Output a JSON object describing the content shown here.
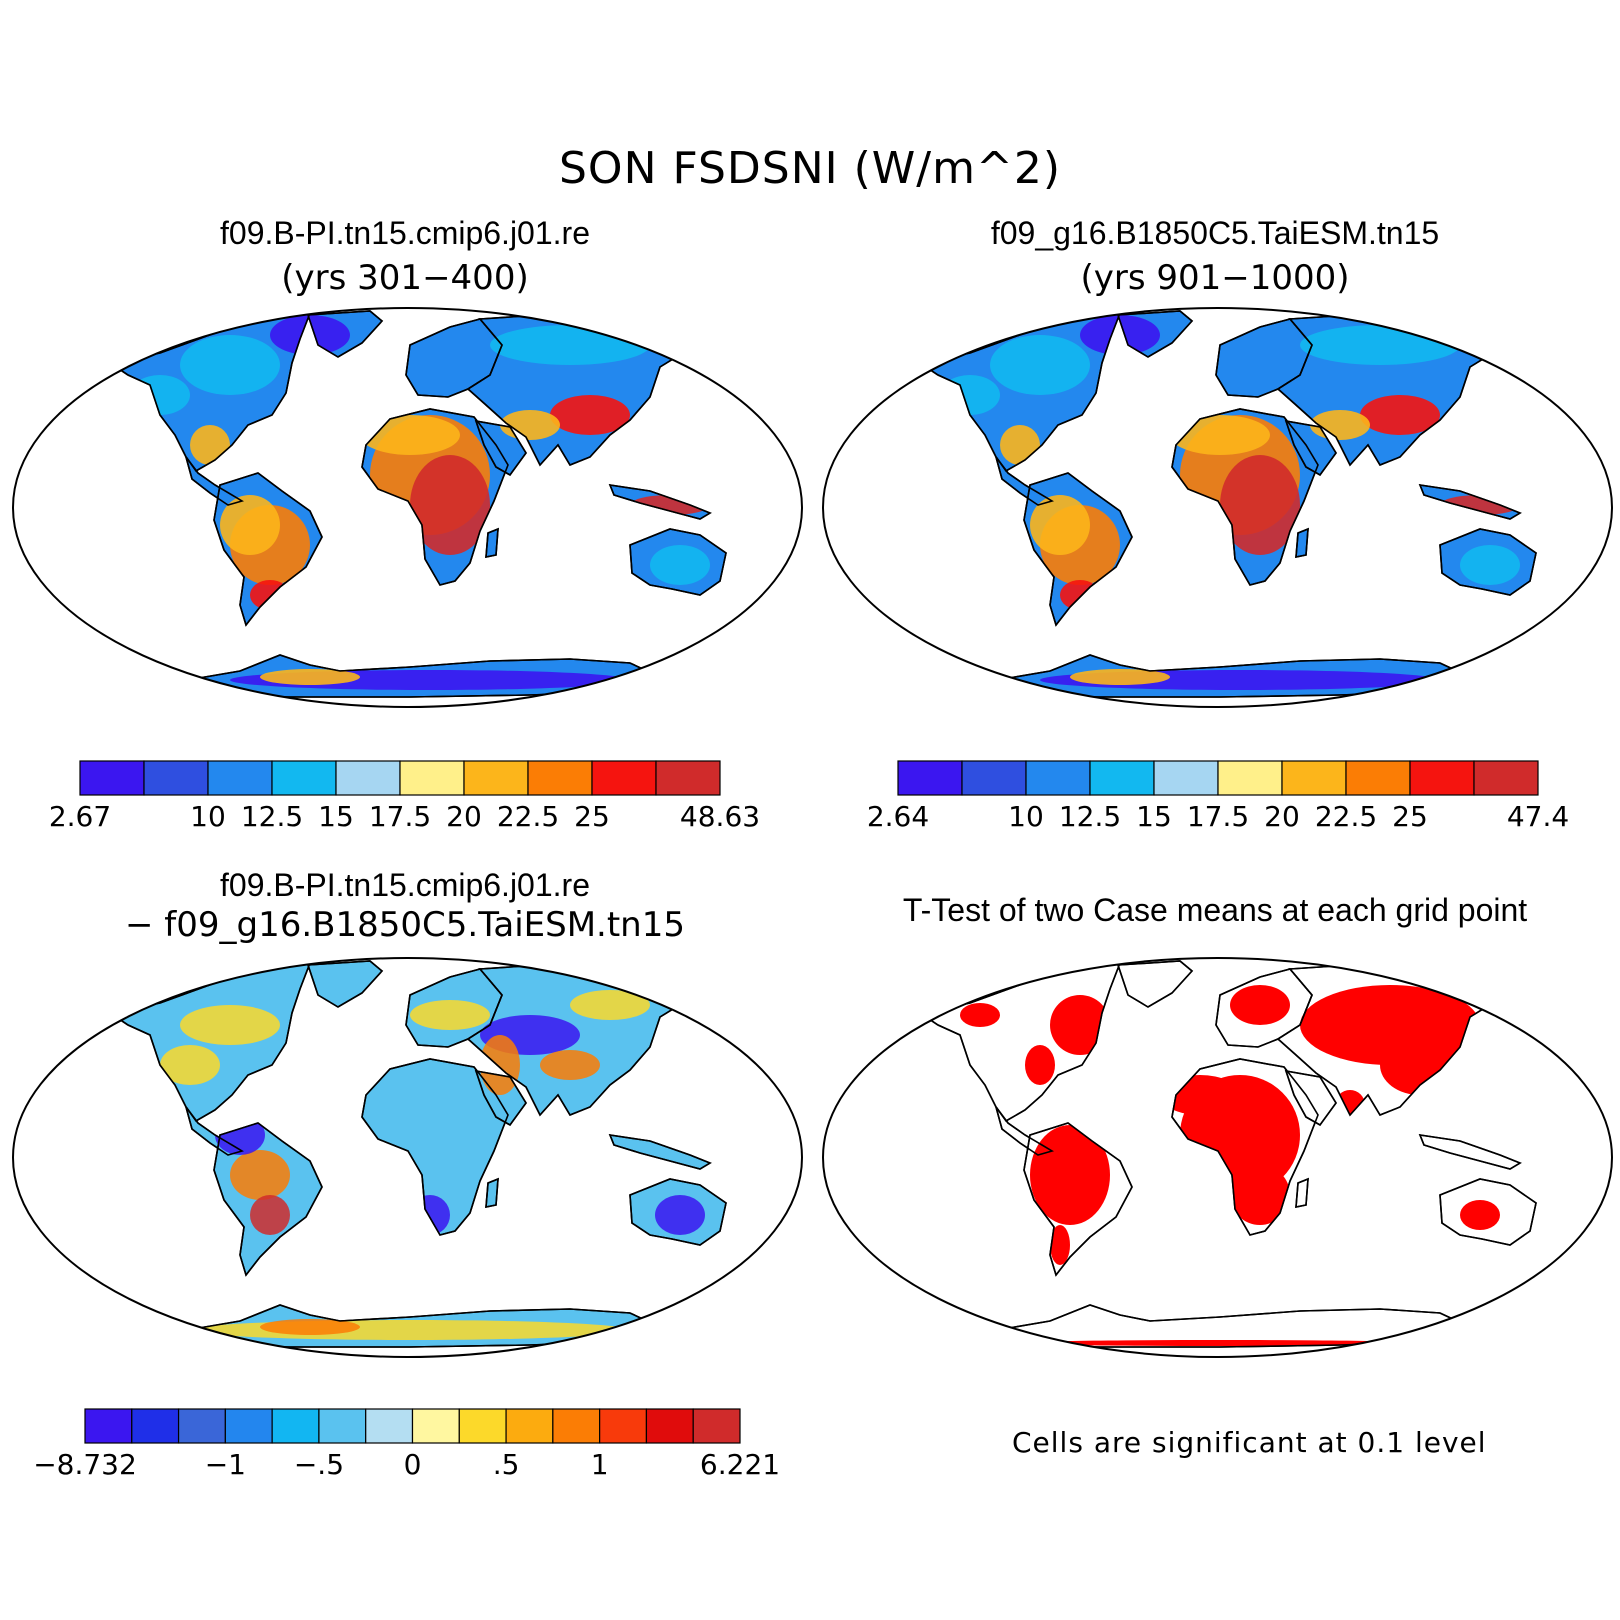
{
  "figure": {
    "title": "SON FSDSNI (W/m^2)"
  },
  "panels": [
    {
      "id": "case1",
      "title": "f09.B-PI.tn15.cmip6.j01.re",
      "subtitle": "(yrs 301−400)",
      "colorbar": {
        "colors": [
          "#3b16f0",
          "#2f4fe0",
          "#2388ee",
          "#12b8f0",
          "#a6d6f2",
          "#fff08a",
          "#fcb51b",
          "#fb7d05",
          "#f5140f",
          "#d02b2b"
        ],
        "labels": [
          "2.67",
          "10",
          "12.5",
          "15",
          "17.5",
          "20",
          "22.5",
          "25",
          "48.63"
        ],
        "label_positions": [
          0,
          2,
          3,
          4,
          5,
          6,
          7,
          8,
          10
        ]
      }
    },
    {
      "id": "case2",
      "title": "f09_g16.B1850C5.TaiESM.tn15",
      "subtitle": "(yrs 901−1000)",
      "colorbar": {
        "colors": [
          "#3b16f0",
          "#2f4fe0",
          "#2388ee",
          "#12b8f0",
          "#a6d6f2",
          "#fff08a",
          "#fcb51b",
          "#fb7d05",
          "#f5140f",
          "#d02b2b"
        ],
        "labels": [
          "2.64",
          "10",
          "12.5",
          "15",
          "17.5",
          "20",
          "22.5",
          "25",
          "47.4"
        ],
        "label_positions": [
          0,
          2,
          3,
          4,
          5,
          6,
          7,
          8,
          10
        ]
      }
    },
    {
      "id": "diff",
      "title": "f09.B-PI.tn15.cmip6.j01.re",
      "subtitle": "− f09_g16.B1850C5.TaiESM.tn15",
      "colorbar": {
        "colors": [
          "#3b16f0",
          "#1f2fe8",
          "#3a66d8",
          "#2386ee",
          "#12b6f2",
          "#5ac2ef",
          "#b4def2",
          "#fff7a0",
          "#fcd92a",
          "#fcab0f",
          "#fb7d05",
          "#f83a0b",
          "#e00c0c",
          "#d02b2b"
        ],
        "labels": [
          "−8.732",
          "−1",
          "−.5",
          "0",
          ".5",
          "1",
          "6.221"
        ],
        "label_positions": [
          0,
          3,
          5,
          7,
          9,
          11,
          14
        ]
      }
    },
    {
      "id": "ttest",
      "title": "T-Test of two Case means at each grid point",
      "footnote": "Cells are significant at 0.1 level"
    }
  ]
}
